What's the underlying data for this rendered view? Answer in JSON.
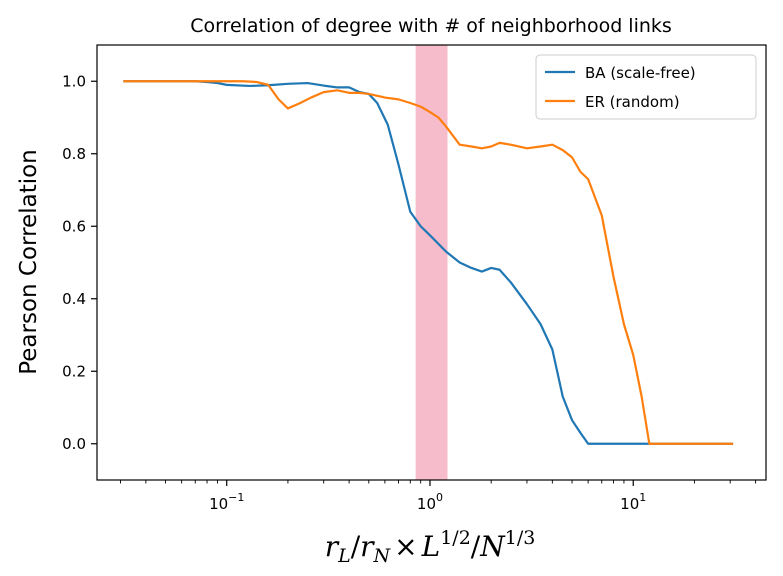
{
  "chart_data": {
    "type": "line",
    "title": "Correlation of degree with # of neighborhood links",
    "ylabel": "Pearson Correlation",
    "xlabel_parts": {
      "rL_main": "r",
      "rL_sub": "L",
      "slash1": "/",
      "rN_main": "r",
      "rN_sub": "N",
      "times": "×",
      "L_main": "L",
      "L_sup": "1/2",
      "slash2": "/",
      "N_main": "N",
      "N_sup": "1/3"
    },
    "x_scale": "log",
    "xlim": [
      0.023,
      45
    ],
    "ylim": [
      -0.1,
      1.1
    ],
    "x_ticks": [
      {
        "value": 0.1,
        "base": "10",
        "exp": "−1"
      },
      {
        "value": 1,
        "label": "10",
        "exp": "0"
      },
      {
        "value": 10,
        "base": "10",
        "exp": "1"
      }
    ],
    "y_ticks": [
      {
        "value": 0.0,
        "label": "0.0"
      },
      {
        "value": 0.2,
        "label": "0.2"
      },
      {
        "value": 0.4,
        "label": "0.4"
      },
      {
        "value": 0.6,
        "label": "0.6"
      },
      {
        "value": 0.8,
        "label": "0.8"
      },
      {
        "value": 1.0,
        "label": "1.0"
      }
    ],
    "shaded_band": {
      "x_start": 0.85,
      "x_end": 1.22,
      "color": "#f7bccc"
    },
    "legend_position": "top-right",
    "series": [
      {
        "name": "BA (scale-free)",
        "color": "#1f77b4",
        "x": [
          0.031,
          0.04,
          0.05,
          0.06,
          0.07,
          0.08,
          0.09,
          0.1,
          0.13,
          0.16,
          0.2,
          0.25,
          0.3,
          0.35,
          0.4,
          0.45,
          0.5,
          0.55,
          0.62,
          0.7,
          0.8,
          0.9,
          1.0,
          1.2,
          1.4,
          1.6,
          1.8,
          2.0,
          2.2,
          2.5,
          3.0,
          3.5,
          4.0,
          4.5,
          5.0,
          5.5,
          6.0,
          8.0,
          10.0,
          12.0,
          15.0,
          20.0,
          25.0,
          31.0
        ],
        "y": [
          1.0,
          1.0,
          1.0,
          1.0,
          1.0,
          0.998,
          0.995,
          0.99,
          0.987,
          0.989,
          0.993,
          0.995,
          0.988,
          0.983,
          0.983,
          0.97,
          0.965,
          0.94,
          0.88,
          0.77,
          0.64,
          0.6,
          0.575,
          0.53,
          0.5,
          0.485,
          0.475,
          0.485,
          0.48,
          0.445,
          0.385,
          0.33,
          0.26,
          0.13,
          0.065,
          0.03,
          0.0,
          0.0,
          0.0,
          0.0,
          0.0,
          0.0,
          0.0,
          0.0
        ]
      },
      {
        "name": "ER (random)",
        "color": "#ff7f0e",
        "x": [
          0.031,
          0.04,
          0.05,
          0.06,
          0.07,
          0.08,
          0.09,
          0.1,
          0.12,
          0.14,
          0.16,
          0.18,
          0.2,
          0.23,
          0.26,
          0.3,
          0.35,
          0.4,
          0.45,
          0.5,
          0.6,
          0.7,
          0.8,
          0.9,
          1.0,
          1.1,
          1.2,
          1.4,
          1.6,
          1.8,
          2.0,
          2.2,
          2.5,
          3.0,
          3.5,
          4.0,
          4.5,
          5.0,
          5.5,
          6.0,
          7.0,
          8.0,
          9.0,
          10.0,
          11.0,
          12.0,
          15.0,
          20.0,
          25.0,
          31.0
        ],
        "y": [
          1.0,
          1.0,
          1.0,
          1.0,
          1.0,
          1.0,
          1.0,
          1.0,
          1.0,
          0.998,
          0.99,
          0.95,
          0.925,
          0.94,
          0.955,
          0.97,
          0.975,
          0.968,
          0.968,
          0.965,
          0.955,
          0.95,
          0.94,
          0.93,
          0.915,
          0.9,
          0.875,
          0.825,
          0.82,
          0.815,
          0.82,
          0.83,
          0.825,
          0.815,
          0.82,
          0.825,
          0.81,
          0.79,
          0.75,
          0.73,
          0.63,
          0.46,
          0.33,
          0.245,
          0.13,
          0.0,
          0.0,
          0.0,
          0.0,
          0.0
        ]
      }
    ]
  }
}
